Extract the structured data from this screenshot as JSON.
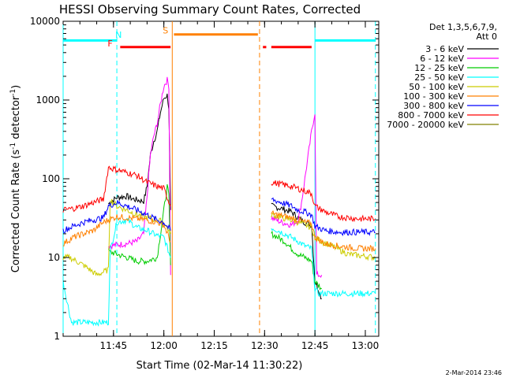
{
  "chart_data": {
    "type": "line",
    "title": "HESSI Observing Summary Count Rates, Corrected",
    "xlabel": "Start Time (02-Mar-14 11:30:22)",
    "ylabel_main": "Corrected Count Rate (s",
    "ylabel_sup": "-1",
    "ylabel_tail": " detector",
    "ylabel_end": ")",
    "ylog": true,
    "ylim": [
      1,
      10000
    ],
    "xlim_minutes": [
      0,
      94
    ],
    "x_ticks": [
      {
        "m": 15,
        "label": "11:45"
      },
      {
        "m": 30,
        "label": "12:00"
      },
      {
        "m": 45,
        "label": "12:15"
      },
      {
        "m": 60,
        "label": "12:30"
      },
      {
        "m": 75,
        "label": "12:45"
      },
      {
        "m": 90,
        "label": "13:00"
      }
    ],
    "y_ticks": [
      {
        "v": 1,
        "label": "1"
      },
      {
        "v": 10,
        "label": "10"
      },
      {
        "v": 100,
        "label": "100"
      },
      {
        "v": 1000,
        "label": "1000"
      },
      {
        "v": 10000,
        "label": "10000"
      }
    ],
    "legend_header": [
      "Det 1,3,5,6,7,9,",
      "Att 0"
    ],
    "legend_position": "right",
    "series": [
      {
        "name": "3 - 6 keV",
        "color": "#000000",
        "segments": [
          [
            [
              13.5,
              48
            ],
            [
              16,
              58
            ],
            [
              19,
              60
            ],
            [
              21,
              55
            ],
            [
              24,
              52
            ],
            [
              25,
              80
            ],
            [
              26,
              200
            ],
            [
              27,
              300
            ],
            [
              28,
              400
            ],
            [
              29,
              700
            ],
            [
              30,
              1050
            ],
            [
              31,
              1150
            ],
            [
              31.5,
              800
            ],
            [
              32,
              40
            ]
          ],
          [
            [
              62,
              45
            ],
            [
              65,
              42
            ],
            [
              68,
              38
            ],
            [
              70,
              32
            ],
            [
              72,
              28
            ],
            [
              74,
              26
            ],
            [
              75,
              5
            ],
            [
              76,
              4
            ],
            [
              77,
              3
            ]
          ]
        ]
      },
      {
        "name": "6 - 12 keV",
        "color": "#ff00ff",
        "segments": [
          [
            [
              13.5,
              14
            ],
            [
              16,
              14.5
            ],
            [
              19,
              15
            ],
            [
              22,
              16
            ],
            [
              24,
              20
            ],
            [
              25,
              60
            ],
            [
              26,
              200
            ],
            [
              27,
              350
            ],
            [
              28,
              500
            ],
            [
              29,
              900
            ],
            [
              30,
              1500
            ],
            [
              31,
              1800
            ],
            [
              31.5,
              1500
            ],
            [
              32,
              6
            ]
          ],
          [
            [
              62,
              32
            ],
            [
              65,
              28
            ],
            [
              68,
              26
            ],
            [
              70,
              30
            ],
            [
              71,
              50
            ],
            [
              72,
              100
            ],
            [
              73,
              200
            ],
            [
              74,
              400
            ],
            [
              75,
              700
            ],
            [
              75.5,
              6
            ],
            [
              77,
              6
            ]
          ]
        ]
      },
      {
        "name": "12 - 25 keV",
        "color": "#00cc00",
        "segments": [
          [
            [
              13.5,
              12
            ],
            [
              16,
              11
            ],
            [
              19,
              10
            ],
            [
              22,
              9
            ],
            [
              25,
              9
            ],
            [
              28,
              10
            ],
            [
              30,
              40
            ],
            [
              31,
              80
            ],
            [
              31.5,
              60
            ],
            [
              32,
              8
            ]
          ],
          [
            [
              62,
              20
            ],
            [
              64,
              18
            ],
            [
              66,
              16
            ],
            [
              68,
              13
            ],
            [
              70,
              11
            ],
            [
              72,
              10
            ],
            [
              74,
              9
            ],
            [
              75,
              5
            ],
            [
              77,
              4
            ]
          ]
        ]
      },
      {
        "name": "25 - 50 keV",
        "color": "#00ffff",
        "segments": [
          [
            [
              0,
              5
            ],
            [
              1,
              3
            ],
            [
              2.5,
              1.5
            ],
            [
              13.5,
              1.5
            ],
            [
              14,
              12
            ],
            [
              16,
              28
            ],
            [
              19,
              30
            ],
            [
              22,
              24
            ],
            [
              25,
              22
            ],
            [
              28,
              19
            ],
            [
              30,
              18
            ],
            [
              32,
              10
            ]
          ],
          [
            [
              62,
              24
            ],
            [
              64,
              22
            ],
            [
              66,
              20
            ],
            [
              68,
              18
            ],
            [
              70,
              16
            ],
            [
              72,
              14
            ],
            [
              74,
              13
            ],
            [
              75,
              4
            ],
            [
              76,
              3.5
            ],
            [
              93,
              3.5
            ]
          ]
        ]
      },
      {
        "name": "50 - 100 keV",
        "color": "#cccc00",
        "segments": [
          [
            [
              0,
              10
            ],
            [
              2,
              10
            ],
            [
              4,
              9
            ],
            [
              6,
              8
            ],
            [
              8,
              7
            ],
            [
              10,
              6
            ],
            [
              13.5,
              7
            ],
            [
              14,
              55
            ],
            [
              16,
              45
            ],
            [
              19,
              40
            ],
            [
              22,
              35
            ],
            [
              25,
              32
            ],
            [
              28,
              30
            ],
            [
              30,
              28
            ],
            [
              32,
              20
            ]
          ],
          [
            [
              62,
              35
            ],
            [
              65,
              32
            ],
            [
              68,
              30
            ],
            [
              70,
              28
            ],
            [
              72,
              26
            ],
            [
              74,
              24
            ],
            [
              75,
              18
            ],
            [
              77,
              16
            ],
            [
              80,
              14
            ],
            [
              85,
              11
            ],
            [
              93,
              10
            ]
          ]
        ]
      },
      {
        "name": "100 - 300 keV",
        "color": "#ff8000",
        "segments": [
          [
            [
              0,
              15
            ],
            [
              3,
              18
            ],
            [
              6,
              20
            ],
            [
              9,
              22
            ],
            [
              12,
              28
            ],
            [
              13.5,
              30
            ],
            [
              16,
              33
            ],
            [
              19,
              32
            ],
            [
              22,
              31
            ],
            [
              25,
              30
            ],
            [
              28,
              28
            ],
            [
              30,
              26
            ],
            [
              32,
              16
            ]
          ],
          [
            [
              62,
              36
            ],
            [
              65,
              34
            ],
            [
              68,
              32
            ],
            [
              70,
              30
            ],
            [
              72,
              28
            ],
            [
              74,
              27
            ],
            [
              75,
              18
            ],
            [
              78,
              15
            ],
            [
              82,
              14
            ],
            [
              88,
              13
            ],
            [
              93,
              13
            ]
          ]
        ]
      },
      {
        "name": "300 - 800 keV",
        "color": "#0000ff",
        "segments": [
          [
            [
              0,
              22
            ],
            [
              3,
              25
            ],
            [
              6,
              28
            ],
            [
              9,
              30
            ],
            [
              12,
              32
            ],
            [
              13.5,
              45
            ],
            [
              16,
              50
            ],
            [
              19,
              45
            ],
            [
              22,
              40
            ],
            [
              25,
              35
            ],
            [
              28,
              30
            ],
            [
              30,
              28
            ],
            [
              32,
              22
            ]
          ],
          [
            [
              62,
              55
            ],
            [
              65,
              50
            ],
            [
              68,
              45
            ],
            [
              70,
              40
            ],
            [
              72,
              38
            ],
            [
              74,
              35
            ],
            [
              75,
              25
            ],
            [
              78,
              22
            ],
            [
              82,
              21
            ],
            [
              88,
              21
            ],
            [
              93,
              21
            ]
          ]
        ]
      },
      {
        "name": "800 - 7000 keV",
        "color": "#ff0000",
        "segments": [
          [
            [
              0,
              40
            ],
            [
              3,
              42
            ],
            [
              6,
              45
            ],
            [
              9,
              50
            ],
            [
              12,
              55
            ],
            [
              13.5,
              140
            ],
            [
              16,
              130
            ],
            [
              19,
              120
            ],
            [
              22,
              110
            ],
            [
              25,
              90
            ],
            [
              28,
              80
            ],
            [
              30,
              75
            ],
            [
              32,
              45
            ]
          ],
          [
            [
              62,
              90
            ],
            [
              65,
              85
            ],
            [
              68,
              80
            ],
            [
              70,
              75
            ],
            [
              72,
              70
            ],
            [
              74,
              65
            ],
            [
              75,
              45
            ],
            [
              78,
              38
            ],
            [
              82,
              33
            ],
            [
              88,
              31
            ],
            [
              93,
              31
            ]
          ]
        ]
      },
      {
        "name": "7000 - 20000 keV",
        "color": "#808000",
        "segments": []
      }
    ],
    "state_bars": [
      {
        "label": "",
        "color": "#00ffff",
        "y": 5700,
        "segments": [
          [
            0,
            16
          ],
          [
            75,
            93
          ]
        ]
      },
      {
        "label": "N",
        "label_color": "#00ffff",
        "label_at": 16.5,
        "label_y": 6200,
        "color": "#00ffff",
        "y": 5700,
        "segments": []
      },
      {
        "label": "F",
        "label_color": "#ff0000",
        "label_at": 14,
        "label_y": 4800,
        "color": "#ff0000",
        "y": 4700,
        "segments": [
          [
            17,
            32
          ],
          [
            59.5,
            60.5
          ],
          [
            62,
            74
          ]
        ]
      },
      {
        "label": "S",
        "label_color": "#ff8000",
        "label_at": 30.5,
        "label_y": 7000,
        "color": "#ff8000",
        "y": 6800,
        "segments": [
          [
            33,
            58
          ]
        ]
      }
    ],
    "vlines": [
      {
        "m": 16,
        "color": "#00ffff",
        "style": "dashed"
      },
      {
        "m": 32.5,
        "color": "#ff8000",
        "style": "solid"
      },
      {
        "m": 58.5,
        "color": "#ff8000",
        "style": "dashed"
      },
      {
        "m": 75,
        "color": "#00ffff",
        "style": "solid"
      },
      {
        "m": 93,
        "color": "#00ffff",
        "style": "dashed"
      },
      {
        "m": 0,
        "color": "#00ffff",
        "style": "solid"
      }
    ]
  },
  "footer_timestamp": "2-Mar-2014 23:46"
}
